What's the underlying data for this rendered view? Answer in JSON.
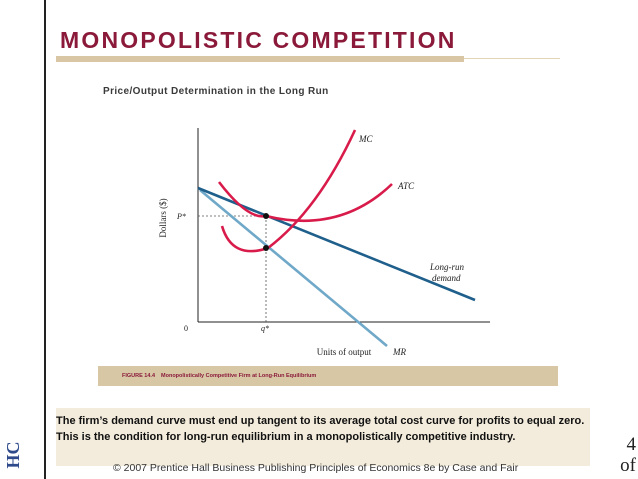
{
  "slide": {
    "title": "MONOPOLISTIC COMPETITION",
    "subtitle": "Price/Output Determination in the Long Run",
    "side_mark": "HC",
    "page_number_top": "4",
    "page_number_bottom": "of"
  },
  "diagram": {
    "y_axis_label": "Dollars ($)",
    "x_axis_label": "Units of output",
    "origin_label": "0",
    "price_label": "P*",
    "quantity_label": "q*",
    "curves": {
      "mc": "MC",
      "atc": "ATC",
      "demand_line1": "Long-run",
      "demand_line2": "demand",
      "mr": "MR"
    },
    "colors": {
      "cost_curves": "#d81b4a",
      "demand": "#1f5f8b",
      "mr": "#6fa8c8",
      "axis": "#222222"
    }
  },
  "figure": {
    "label": "FIGURE 14.4",
    "caption": "Monopolistically Competitive Firm at Long-Run Equilibrium"
  },
  "note": {
    "text": "The firm’s demand curve must end up tangent to its average total cost curve for profits to equal zero.  This is the condition for long-run equilibrium in a monopolistically competitive industry."
  },
  "footer": {
    "text": "© 2007 Prentice Hall Business Publishing   Principles of Economics 8e by Case and Fair"
  }
}
